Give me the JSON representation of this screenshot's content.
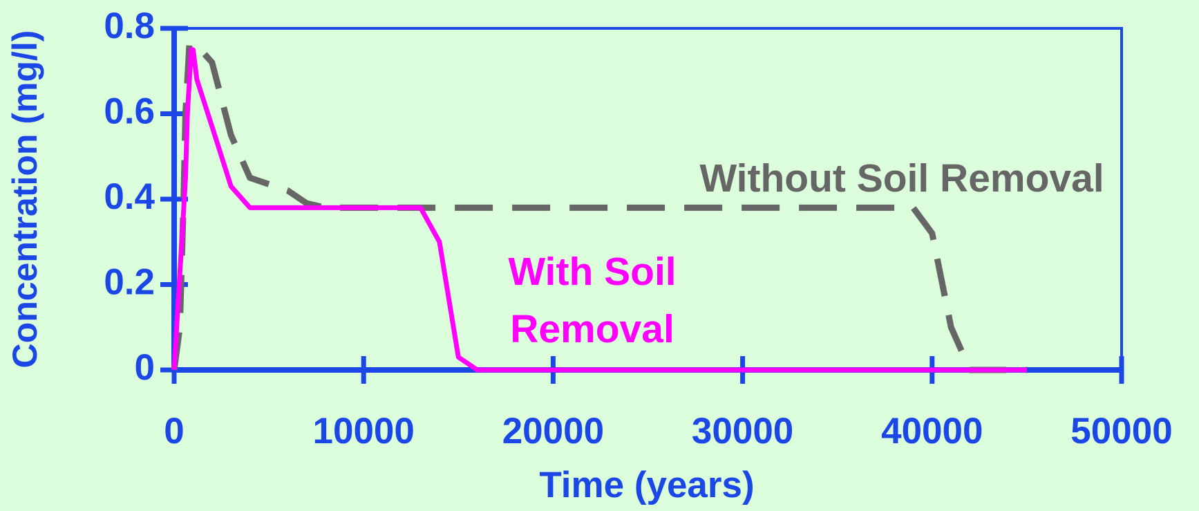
{
  "chart_data": {
    "type": "line",
    "xlabel": "Time (years)",
    "ylabel": "Concentration (mg/l)",
    "xlim": [
      0,
      50000
    ],
    "ylim": [
      0,
      0.8
    ],
    "xticks": [
      0,
      10000,
      20000,
      30000,
      40000,
      50000
    ],
    "yticks": [
      0,
      0.2,
      0.4,
      0.6,
      0.8
    ],
    "axis_color": "#1a47e6",
    "series": [
      {
        "name": "Without Soil Removal",
        "color": "#666666",
        "dash": true,
        "x": [
          0,
          300,
          500,
          600,
          800,
          1200,
          2000,
          3000,
          4000,
          6000,
          7000,
          8000,
          39000,
          40000,
          41000,
          42000,
          45000
        ],
        "values": [
          0,
          0.1,
          0.4,
          0.6,
          0.76,
          0.76,
          0.72,
          0.55,
          0.45,
          0.42,
          0.39,
          0.38,
          0.38,
          0.32,
          0.1,
          0,
          0
        ]
      },
      {
        "name": "With Soil Removal",
        "color": "#ff00ff",
        "dash": false,
        "x": [
          0,
          200,
          400,
          600,
          700,
          900,
          1000,
          1200,
          2000,
          3000,
          4000,
          13000,
          14000,
          15000,
          16000,
          45000
        ],
        "values": [
          0,
          0.15,
          0.3,
          0.45,
          0.6,
          0.75,
          0.75,
          0.68,
          0.57,
          0.43,
          0.38,
          0.38,
          0.3,
          0.03,
          0,
          0
        ]
      }
    ],
    "annotations": [
      {
        "lines": [
          "Without Soil Removal"
        ],
        "series": 0
      },
      {
        "lines": [
          "With Soil",
          "Removal"
        ],
        "series": 1
      }
    ]
  }
}
